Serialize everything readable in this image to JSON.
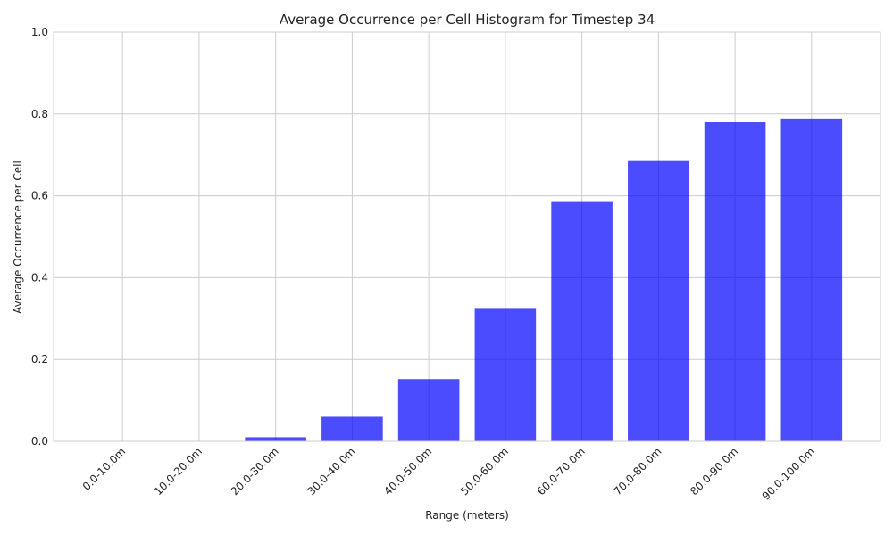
{
  "chart_data": {
    "type": "bar",
    "title": "Average Occurrence per Cell Histogram for Timestep 34",
    "xlabel": "Range (meters)",
    "ylabel": "Average Occurrence per Cell",
    "categories": [
      "0.0-10.0m",
      "10.0-20.0m",
      "20.0-30.0m",
      "30.0-40.0m",
      "40.0-50.0m",
      "50.0-60.0m",
      "60.0-70.0m",
      "70.0-80.0m",
      "80.0-90.0m",
      "90.0-100.0m"
    ],
    "values": [
      0.0,
      0.0,
      0.01,
      0.06,
      0.152,
      0.326,
      0.587,
      0.687,
      0.78,
      0.789
    ],
    "ylim": [
      0,
      1.0
    ],
    "yticks": [
      "0.0",
      "0.2",
      "0.4",
      "0.6",
      "0.8",
      "1.0"
    ],
    "grid": true,
    "bar_color": "#0000ff",
    "bar_opacity": 0.7
  }
}
